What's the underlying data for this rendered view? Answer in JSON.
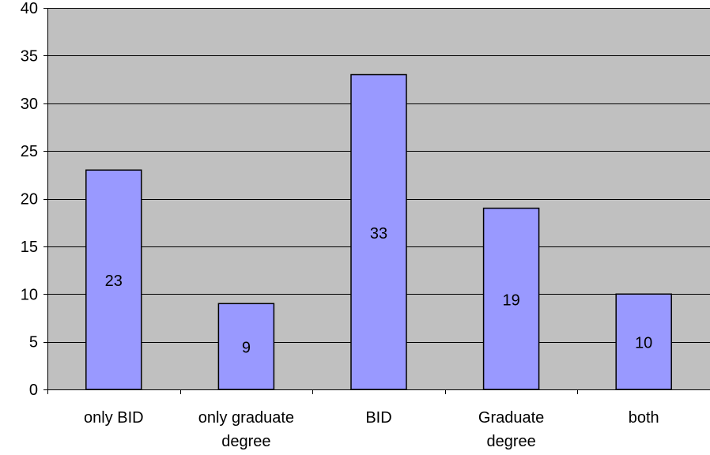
{
  "chart_data": {
    "type": "bar",
    "title": "",
    "xlabel": "",
    "ylabel": "",
    "categories": [
      [
        "only BID"
      ],
      [
        "only graduate",
        "degree"
      ],
      [
        "BID"
      ],
      [
        "Graduate",
        "degree"
      ],
      [
        "both"
      ]
    ],
    "values": [
      23,
      9,
      33,
      19,
      10
    ],
    "data_labels": [
      "23",
      "9",
      "33",
      "19",
      "10"
    ],
    "ylim": [
      0,
      40
    ],
    "yticks": [
      0,
      5,
      10,
      15,
      20,
      25,
      30,
      35,
      40
    ],
    "grid": true,
    "legend": "none",
    "colors": {
      "plot_background": "#c0c0c0",
      "bar_fill": "#9999ff",
      "bar_stroke": "#000000",
      "gridline": "#000000",
      "axis": "#000000"
    }
  }
}
